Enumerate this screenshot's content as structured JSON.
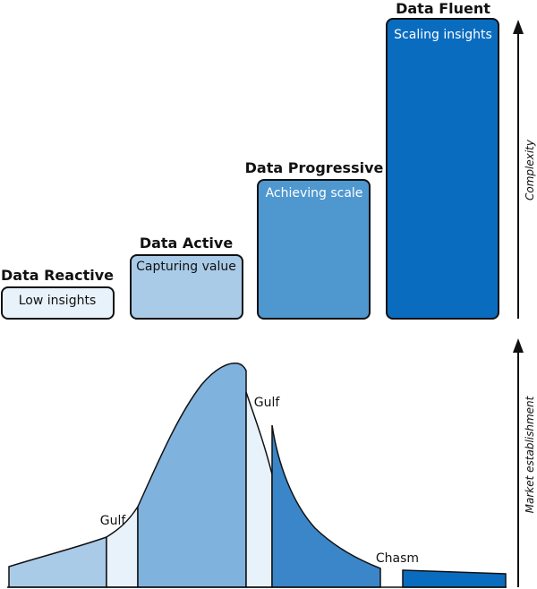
{
  "stages": [
    {
      "title": "Data Reactive",
      "subtitle": "Low insights",
      "fill": "#e8f2fa",
      "text_color": "#111111"
    },
    {
      "title": "Data Active",
      "subtitle": "Capturing value",
      "fill": "#a9cbe8",
      "text_color": "#111111"
    },
    {
      "title": "Data Progressive",
      "subtitle": "Achieving scale",
      "fill": "#4f97cf",
      "text_color": "#ffffff"
    },
    {
      "title": "Data Fluent",
      "subtitle": "Scaling insights",
      "fill": "#0a6cbf",
      "text_color": "#ffffff"
    }
  ],
  "axes": {
    "top": "Complexity",
    "bottom": "Market establishment"
  },
  "gaps": {
    "gulf_1": "Gulf",
    "gulf_2": "Gulf",
    "chasm": "Chasm"
  },
  "curve_colors": {
    "segment_1": "#a9cbe8",
    "gulf": "#e8f2fa",
    "segment_2": "#7fb2dd",
    "segment_3": "#3a86c8",
    "segment_4": "#0a6cbf"
  }
}
